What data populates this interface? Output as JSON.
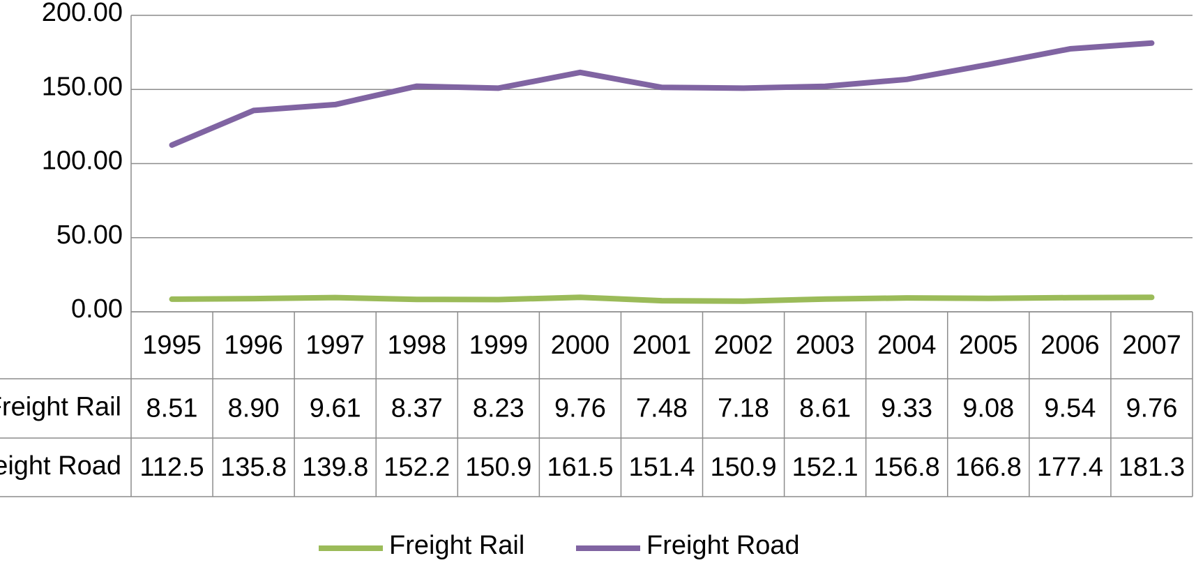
{
  "chart_data": {
    "type": "line",
    "categories": [
      "1995",
      "1996",
      "1997",
      "1998",
      "1999",
      "2000",
      "2001",
      "2002",
      "2003",
      "2004",
      "2005",
      "2006",
      "2007"
    ],
    "series": [
      {
        "name": "Freight Rail",
        "color": "#9bbb59",
        "values": [
          8.51,
          8.9,
          9.61,
          8.37,
          8.23,
          9.76,
          7.48,
          7.18,
          8.61,
          9.33,
          9.08,
          9.54,
          9.76
        ],
        "value_labels": [
          "8.51",
          "8.90",
          "9.61",
          "8.37",
          "8.23",
          "9.76",
          "7.48",
          "7.18",
          "8.61",
          "9.33",
          "9.08",
          "9.54",
          "9.76"
        ]
      },
      {
        "name": "Freight Road",
        "color": "#8064a2",
        "values": [
          112.5,
          135.8,
          139.8,
          152.2,
          150.9,
          161.5,
          151.4,
          150.9,
          152.1,
          156.8,
          166.8,
          177.4,
          181.3
        ]
      }
    ],
    "ylim": [
      0,
      200
    ],
    "yticks": [
      {
        "value": 0,
        "label": "0.00"
      },
      {
        "value": 50,
        "label": "50.00"
      },
      {
        "value": 100,
        "label": "100.00"
      },
      {
        "value": 150,
        "label": "150.00"
      },
      {
        "value": 200,
        "label": "200.00"
      }
    ],
    "grid": true,
    "legend": "bottom"
  }
}
